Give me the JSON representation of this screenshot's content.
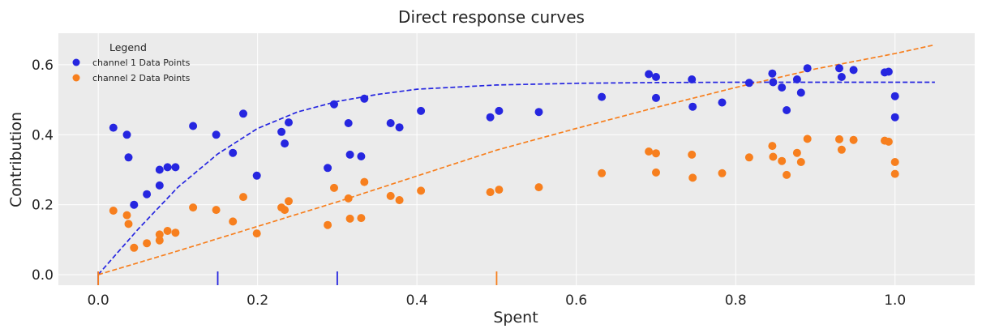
{
  "chart_data": {
    "type": "scatter",
    "title": "Direct response curves",
    "xlabel": "Spent",
    "ylabel": "Contribution",
    "xlim": [
      -0.05,
      1.1
    ],
    "ylim": [
      -0.03,
      0.69
    ],
    "xticks": [
      0.0,
      0.2,
      0.4,
      0.6,
      0.8,
      1.0
    ],
    "xtick_labels": [
      "0.0",
      "0.2",
      "0.4",
      "0.6",
      "0.8",
      "1.0"
    ],
    "yticks": [
      0.0,
      0.2,
      0.4,
      0.6
    ],
    "ytick_labels": [
      "0.0",
      "0.2",
      "0.4",
      "0.6"
    ],
    "grid": true,
    "legend": {
      "title": "Legend",
      "placement": "top-left",
      "entries": [
        "channel 1 Data Points",
        "channel 2 Data Points"
      ]
    },
    "series": [
      {
        "name": "channel 1 Data Points",
        "kind": "scatter",
        "color": "#2626e0",
        "points": [
          [
            0.019,
            0.42
          ],
          [
            0.036,
            0.4
          ],
          [
            0.038,
            0.335
          ],
          [
            0.045,
            0.2
          ],
          [
            0.061,
            0.23
          ],
          [
            0.077,
            0.3
          ],
          [
            0.077,
            0.255
          ],
          [
            0.087,
            0.307
          ],
          [
            0.097,
            0.307
          ],
          [
            0.119,
            0.425
          ],
          [
            0.148,
            0.4
          ],
          [
            0.169,
            0.348
          ],
          [
            0.182,
            0.46
          ],
          [
            0.199,
            0.283
          ],
          [
            0.23,
            0.408
          ],
          [
            0.234,
            0.375
          ],
          [
            0.239,
            0.435
          ],
          [
            0.288,
            0.305
          ],
          [
            0.296,
            0.487
          ],
          [
            0.314,
            0.433
          ],
          [
            0.316,
            0.343
          ],
          [
            0.33,
            0.338
          ],
          [
            0.334,
            0.503
          ],
          [
            0.367,
            0.433
          ],
          [
            0.378,
            0.421
          ],
          [
            0.405,
            0.468
          ],
          [
            0.492,
            0.45
          ],
          [
            0.503,
            0.468
          ],
          [
            0.553,
            0.465
          ],
          [
            0.632,
            0.508
          ],
          [
            0.691,
            0.573
          ],
          [
            0.7,
            0.565
          ],
          [
            0.7,
            0.505
          ],
          [
            0.745,
            0.558
          ],
          [
            0.746,
            0.48
          ],
          [
            0.783,
            0.492
          ],
          [
            0.817,
            0.548
          ],
          [
            0.846,
            0.575
          ],
          [
            0.847,
            0.55
          ],
          [
            0.858,
            0.535
          ],
          [
            0.864,
            0.47
          ],
          [
            0.877,
            0.558
          ],
          [
            0.882,
            0.52
          ],
          [
            0.89,
            0.59
          ],
          [
            0.93,
            0.59
          ],
          [
            0.933,
            0.565
          ],
          [
            0.948,
            0.585
          ],
          [
            0.987,
            0.578
          ],
          [
            0.992,
            0.58
          ],
          [
            1.0,
            0.51
          ],
          [
            1.0,
            0.45
          ]
        ]
      },
      {
        "name": "channel 2 Data Points",
        "kind": "scatter",
        "color": "#f77f1e",
        "points": [
          [
            0.019,
            0.183
          ],
          [
            0.036,
            0.17
          ],
          [
            0.038,
            0.145
          ],
          [
            0.045,
            0.077
          ],
          [
            0.061,
            0.09
          ],
          [
            0.077,
            0.115
          ],
          [
            0.077,
            0.098
          ],
          [
            0.087,
            0.125
          ],
          [
            0.097,
            0.12
          ],
          [
            0.119,
            0.192
          ],
          [
            0.148,
            0.185
          ],
          [
            0.169,
            0.152
          ],
          [
            0.182,
            0.222
          ],
          [
            0.199,
            0.118
          ],
          [
            0.23,
            0.192
          ],
          [
            0.234,
            0.185
          ],
          [
            0.239,
            0.21
          ],
          [
            0.288,
            0.142
          ],
          [
            0.296,
            0.248
          ],
          [
            0.314,
            0.218
          ],
          [
            0.316,
            0.16
          ],
          [
            0.33,
            0.162
          ],
          [
            0.334,
            0.265
          ],
          [
            0.367,
            0.225
          ],
          [
            0.378,
            0.213
          ],
          [
            0.405,
            0.24
          ],
          [
            0.492,
            0.236
          ],
          [
            0.503,
            0.243
          ],
          [
            0.553,
            0.25
          ],
          [
            0.632,
            0.29
          ],
          [
            0.691,
            0.352
          ],
          [
            0.7,
            0.347
          ],
          [
            0.7,
            0.292
          ],
          [
            0.745,
            0.343
          ],
          [
            0.746,
            0.277
          ],
          [
            0.783,
            0.29
          ],
          [
            0.817,
            0.335
          ],
          [
            0.846,
            0.368
          ],
          [
            0.847,
            0.337
          ],
          [
            0.858,
            0.325
          ],
          [
            0.864,
            0.285
          ],
          [
            0.877,
            0.348
          ],
          [
            0.882,
            0.322
          ],
          [
            0.89,
            0.388
          ],
          [
            0.93,
            0.387
          ],
          [
            0.933,
            0.357
          ],
          [
            0.948,
            0.385
          ],
          [
            0.987,
            0.383
          ],
          [
            0.992,
            0.38
          ],
          [
            1.0,
            0.322
          ],
          [
            1.0,
            0.288
          ]
        ]
      },
      {
        "kind": "dashed-line",
        "color": "#2626e0",
        "points": [
          [
            0.0,
            0.0
          ],
          [
            0.05,
            0.13
          ],
          [
            0.1,
            0.25
          ],
          [
            0.15,
            0.345
          ],
          [
            0.2,
            0.418
          ],
          [
            0.25,
            0.465
          ],
          [
            0.3,
            0.495
          ],
          [
            0.35,
            0.515
          ],
          [
            0.4,
            0.53
          ],
          [
            0.5,
            0.542
          ],
          [
            0.6,
            0.547
          ],
          [
            0.7,
            0.549
          ],
          [
            0.8,
            0.55
          ],
          [
            0.9,
            0.55
          ],
          [
            1.05,
            0.55
          ]
        ]
      },
      {
        "kind": "dashed-line",
        "color": "#f77f1e",
        "points": [
          [
            0.0,
            0.0
          ],
          [
            0.1,
            0.068
          ],
          [
            0.2,
            0.138
          ],
          [
            0.3,
            0.208
          ],
          [
            0.4,
            0.282
          ],
          [
            0.5,
            0.356
          ],
          [
            0.6,
            0.418
          ],
          [
            0.7,
            0.478
          ],
          [
            0.8,
            0.535
          ],
          [
            0.9,
            0.588
          ],
          [
            1.0,
            0.632
          ],
          [
            1.05,
            0.657
          ]
        ]
      }
    ],
    "rug_marks": [
      {
        "x": 0.0,
        "color": "#2626e0"
      },
      {
        "x": 0.15,
        "color": "#2626e0"
      },
      {
        "x": 0.3,
        "color": "#2626e0"
      },
      {
        "x": 0.0,
        "color": "#f77f1e"
      },
      {
        "x": 0.5,
        "color": "#f77f1e"
      }
    ],
    "colors": {
      "plot_background": "#ebebeb",
      "grid": "#ffffff"
    }
  }
}
